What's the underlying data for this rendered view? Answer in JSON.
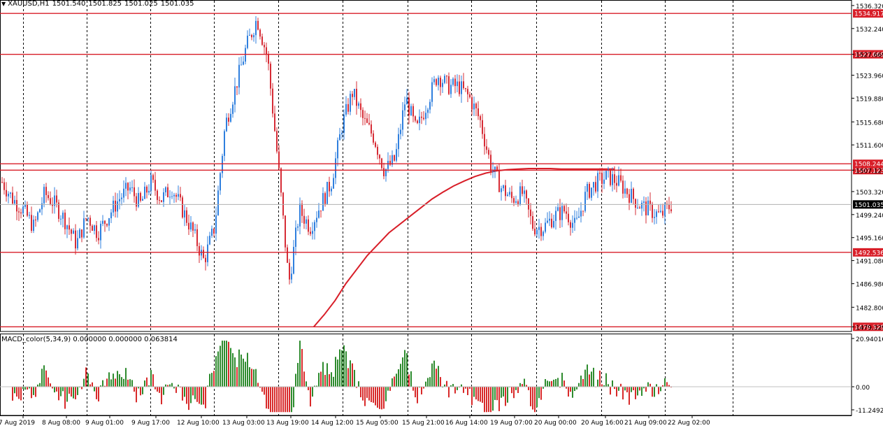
{
  "window": {
    "symbol": "XAUUSD,H1",
    "open": "1501.540",
    "high": "1501.825",
    "low": "1501.025",
    "close": "1501.035"
  },
  "indicator": {
    "label": "MACD_color(5,34,9) 0.000000 0.000000 0.063814",
    "scale_top": "20.940166",
    "scale_zero": "0.00",
    "scale_bottom": "-11.24928"
  },
  "price_axis": {
    "ticks": [
      "1536.320",
      "1532.240",
      "1527.669",
      "1523.960",
      "1519.880",
      "1515.680",
      "1511.600",
      "1507.123",
      "1503.320",
      "1499.240",
      "1495.160",
      "1491.080",
      "1486.980",
      "1482.800",
      "1479.329"
    ],
    "current_price": "1501.035"
  },
  "levels": [
    {
      "label": "1534.917",
      "value": 1534.917
    },
    {
      "label": "1527.669",
      "value": 1527.669
    },
    {
      "label": "1508.244",
      "value": 1508.244
    },
    {
      "label": "1507.123",
      "value": 1507.123
    },
    {
      "label": "1492.536",
      "value": 1492.536
    },
    {
      "label": "1479.329",
      "value": 1479.329
    }
  ],
  "time_axis": [
    "7 Aug 2019",
    "8 Aug 08:00",
    "9 Aug 01:00",
    "9 Aug 17:00",
    "12 Aug 10:00",
    "13 Aug 03:00",
    "13 Aug 19:00",
    "14 Aug 12:00",
    "15 Aug 05:00",
    "15 Aug 21:00",
    "16 Aug 14:00",
    "19 Aug 07:00",
    "20 Aug 00:00",
    "20 Aug 16:00",
    "21 Aug 09:00",
    "22 Aug 02:00"
  ],
  "colors": {
    "bull": "#2f7fde",
    "bear": "#d62c36",
    "level": "#d81e28",
    "ma": "#d81e28",
    "macd_up": "#2e8b2e",
    "macd_down": "#d82a2a",
    "grid": "#000000"
  },
  "chart_data": {
    "type": "candlestick",
    "price_range": [
      1478.5,
      1537.3
    ],
    "close_path": [
      1505,
      1502,
      1500,
      1497,
      1503,
      1501,
      1498,
      1494,
      1499,
      1496,
      1499,
      1502,
      1504,
      1501,
      1505,
      1502,
      1504,
      1500,
      1496,
      1491,
      1497,
      1515,
      1522,
      1529,
      1534,
      1527,
      1508,
      1487,
      1500,
      1497,
      1501,
      1505,
      1515,
      1521,
      1516,
      1513,
      1507,
      1509,
      1520,
      1514,
      1519,
      1524,
      1522,
      1522,
      1520,
      1516,
      1508,
      1504,
      1502,
      1503,
      1497,
      1497,
      1499,
      1500,
      1497,
      1503,
      1505,
      1506,
      1505,
      1503,
      1501,
      1500,
      1499,
      1501
    ],
    "ma_path": [
      null,
      null,
      null,
      null,
      null,
      null,
      null,
      null,
      null,
      null,
      null,
      null,
      null,
      null,
      null,
      null,
      null,
      null,
      null,
      null,
      null,
      null,
      null,
      null,
      null,
      null,
      null,
      null,
      null,
      1479.3,
      1481.5,
      1484,
      1487,
      1489.5,
      1492,
      1494,
      1496,
      1497.5,
      1499,
      1500.5,
      1502,
      1503.2,
      1504.3,
      1505.2,
      1506,
      1506.6,
      1507,
      1507.2,
      1507.3,
      1507.4,
      1507.4,
      1507.4,
      1507.3,
      1507.3,
      1507.3,
      1507.3,
      1507.3,
      1507.3
    ]
  }
}
